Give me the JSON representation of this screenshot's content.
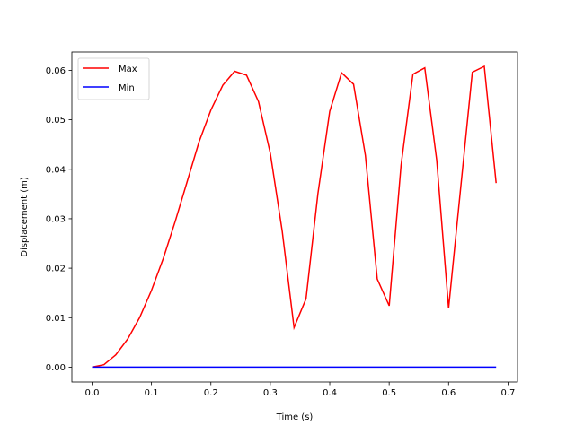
{
  "chart_data": {
    "type": "line",
    "title": "",
    "xlabel": "Time (s)",
    "ylabel": "Displacement (m)",
    "xlim": [
      -0.034,
      0.716
    ],
    "ylim": [
      -0.003,
      0.0637
    ],
    "xticks": [
      0.0,
      0.1,
      0.2,
      0.3,
      0.4,
      0.5,
      0.6,
      0.7
    ],
    "xtick_labels": [
      "0.0",
      "0.1",
      "0.2",
      "0.3",
      "0.4",
      "0.5",
      "0.6",
      "0.7"
    ],
    "yticks": [
      0.0,
      0.01,
      0.02,
      0.03,
      0.04,
      0.05,
      0.06
    ],
    "ytick_labels": [
      "0.00",
      "0.01",
      "0.02",
      "0.03",
      "0.04",
      "0.05",
      "0.06"
    ],
    "grid": false,
    "legend": "upper-left",
    "x": [
      0.0,
      0.02,
      0.04,
      0.06,
      0.08,
      0.1,
      0.12,
      0.14,
      0.16,
      0.18,
      0.2,
      0.22,
      0.24,
      0.26,
      0.28,
      0.3,
      0.32,
      0.34,
      0.36,
      0.38,
      0.4,
      0.42,
      0.44,
      0.46,
      0.48,
      0.5,
      0.52,
      0.54,
      0.56,
      0.58,
      0.6,
      0.62,
      0.64,
      0.66,
      0.68
    ],
    "series": [
      {
        "name": "Max",
        "color": "#ff0000",
        "values": [
          0.0,
          0.0005,
          0.0025,
          0.0057,
          0.01,
          0.0155,
          0.022,
          0.0295,
          0.0375,
          0.0455,
          0.052,
          0.057,
          0.0598,
          0.059,
          0.0537,
          0.0432,
          0.0275,
          0.008,
          0.0138,
          0.035,
          0.0517,
          0.0595,
          0.0572,
          0.0428,
          0.0178,
          0.0124,
          0.0408,
          0.0592,
          0.0605,
          0.0418,
          0.0119,
          0.0358,
          0.0596,
          0.0608,
          0.0372
        ]
      },
      {
        "name": "Min",
        "color": "#0000ff",
        "values": [
          0,
          0,
          0,
          0,
          0,
          0,
          0,
          0,
          0,
          0,
          0,
          0,
          0,
          0,
          0,
          0,
          0,
          0,
          0,
          0,
          0,
          0,
          0,
          0,
          0,
          0,
          0,
          0,
          0,
          0,
          0,
          0,
          0,
          0,
          0
        ]
      }
    ]
  }
}
